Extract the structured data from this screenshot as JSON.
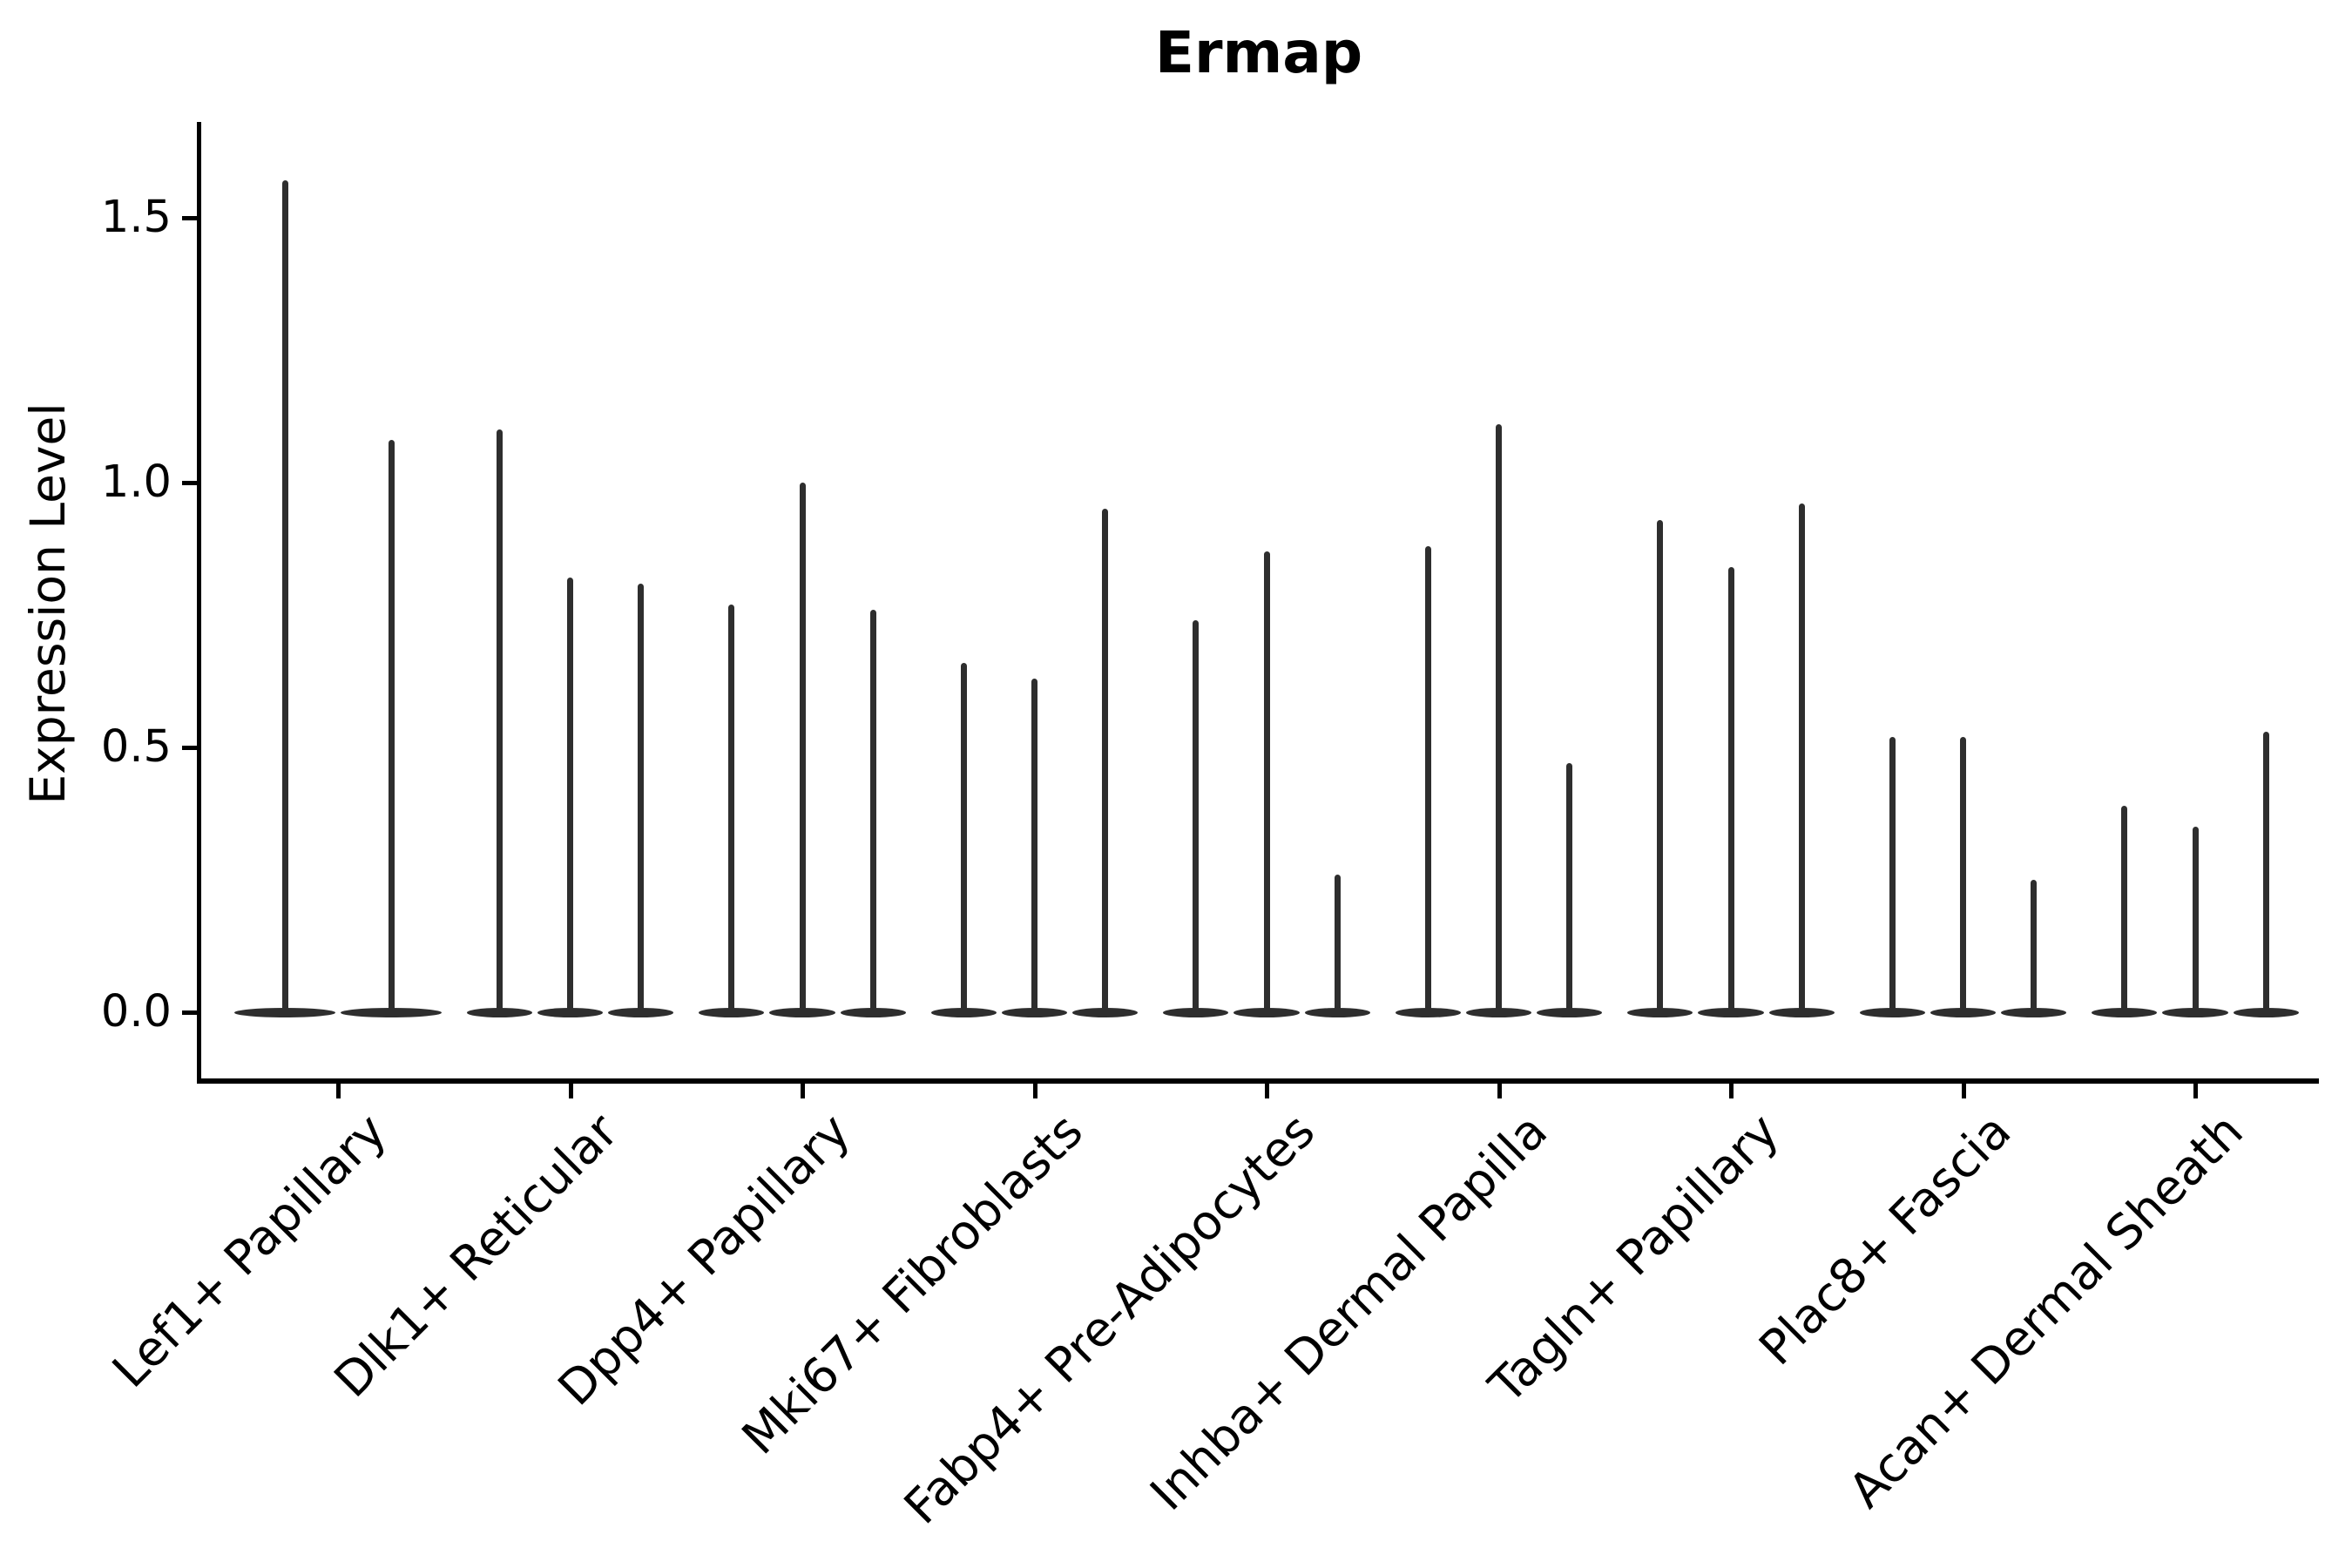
{
  "title": "Ermap",
  "y_axis": {
    "label": "Expression Level",
    "tick_labels": [
      "1.5",
      "1.0",
      "0.5",
      "0.0"
    ]
  },
  "colors": {
    "violin": "#2e2e2e",
    "axis": "#000000",
    "text": "#000000",
    "background": "#ffffff"
  },
  "chart_data": {
    "type": "violin",
    "title": "Ermap",
    "xlabel": "",
    "ylabel": "Expression Level",
    "ylim": [
      -0.13,
      1.68
    ],
    "yticks": [
      0.0,
      0.5,
      1.0,
      1.5
    ],
    "grid": false,
    "legend_position": "none",
    "orientation": "vertical",
    "shape_note": "Each violin is a flat lens-shaped body at expression 0 with a single thin spike rising to the maximum expression value",
    "categories": [
      "Lef1+ Papillary",
      "Dlk1+ Reticular",
      "Dpp4+ Papillary",
      "Mki67+ Fibroblasts",
      "Fabp4+ Pre-Adipocytes",
      "Inhba+ Dermal Papilla",
      "Tagln+ Papillary",
      "Plac8+ Fascia",
      "Acan+ Dermal Sheath"
    ],
    "groups": [
      {
        "category": "Lef1+ Papillary",
        "violin_spike_maxima": [
          1.57,
          1.08
        ]
      },
      {
        "category": "Dlk1+ Reticular",
        "violin_spike_maxima": [
          1.1,
          0.82,
          0.81
        ]
      },
      {
        "category": "Dpp4+ Papillary",
        "violin_spike_maxima": [
          0.77,
          1.0,
          0.76
        ]
      },
      {
        "category": "Mki67+ Fibroblasts",
        "violin_spike_maxima": [
          0.66,
          0.63,
          0.95
        ]
      },
      {
        "category": "Fabp4+ Pre-Adipocytes",
        "violin_spike_maxima": [
          0.74,
          0.87,
          0.26
        ]
      },
      {
        "category": "Inhba+ Dermal Papilla",
        "violin_spike_maxima": [
          0.88,
          1.11,
          0.47
        ]
      },
      {
        "category": "Tagln+ Papillary",
        "violin_spike_maxima": [
          0.93,
          0.84,
          0.96
        ]
      },
      {
        "category": "Plac8+ Fascia",
        "violin_spike_maxima": [
          0.52,
          0.52,
          0.25
        ]
      },
      {
        "category": "Acan+ Dermal Sheath",
        "violin_spike_maxima": [
          0.39,
          0.35,
          0.53
        ]
      }
    ]
  }
}
